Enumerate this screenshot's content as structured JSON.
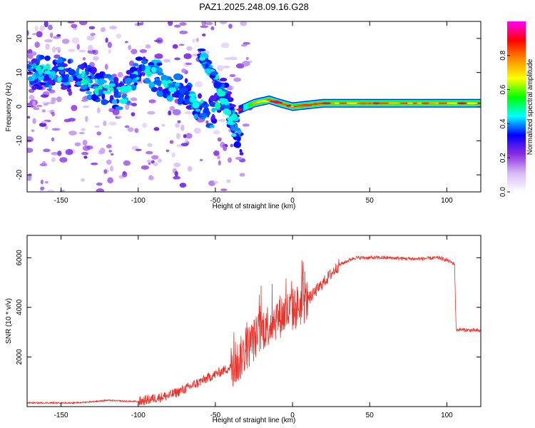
{
  "title": "PAZ1.2025.248.09.16.G28",
  "chart_data": [
    {
      "type": "heatmap",
      "title": "PAZ1.2025.248.09.16.G28",
      "xlabel": "Height of straight line (km)",
      "ylabel": "Frequency (Hz)",
      "xlim": [
        -172,
        122
      ],
      "ylim": [
        -25,
        25
      ],
      "x_ticks": [
        -150,
        -100,
        -50,
        0,
        50,
        100
      ],
      "y_ticks": [
        -20,
        -10,
        0,
        10,
        20
      ],
      "colorbar": {
        "label": "Normalized spectral amplitude",
        "range": [
          0,
          1
        ],
        "ticks": [
          0.0,
          0.2,
          0.4,
          0.6,
          0.8
        ],
        "tick_labels": [
          "0.0",
          "0.2",
          "0.4",
          "0.6",
          "0.8"
        ],
        "colors": [
          "#ffffff",
          "#d6b8f5",
          "#8a2be2",
          "#0000ff",
          "#00ffff",
          "#00ff00",
          "#ffff00",
          "#ff8c00",
          "#ff0000",
          "#ff00ff"
        ]
      },
      "ridge_main": {
        "x": [
          -172,
          -160,
          -140,
          -130,
          -120,
          -110,
          -100,
          -90,
          -80,
          -70,
          -60,
          -52,
          -45,
          -38,
          -33
        ],
        "y": [
          10,
          10,
          9,
          7,
          5,
          3,
          10,
          9,
          7,
          4,
          0,
          -2,
          5,
          -4,
          -10
        ]
      },
      "ridge_secondary": {
        "x": [
          -60,
          -55,
          -50,
          -45,
          -40,
          -36
        ],
        "y": [
          16,
          12,
          8,
          3,
          -4,
          -10
        ]
      },
      "ridge_stable": {
        "x": [
          -35,
          -25,
          -15,
          -8,
          0,
          20,
          60,
          100,
          122
        ],
        "y": [
          -1,
          1,
          2,
          1,
          0,
          1,
          1,
          1,
          1
        ]
      }
    },
    {
      "type": "line",
      "xlabel": "Height of straight line (km)",
      "ylabel": "SNR (10 * v/v)",
      "xlim": [
        -172,
        122
      ],
      "ylim": [
        0,
        6900
      ],
      "x_ticks": [
        -150,
        -100,
        -50,
        0,
        50,
        100
      ],
      "y_ticks": [
        2000,
        4000,
        6000
      ],
      "color": "#e8322a",
      "series": [
        {
          "name": "SNR",
          "x": [
            -172,
            -140,
            -120,
            -100,
            -80,
            -70,
            -60,
            -50,
            -40,
            -35,
            -30,
            -20,
            -10,
            0,
            10,
            20,
            30,
            40,
            60,
            80,
            95,
            100,
            105,
            106,
            110,
            122
          ],
          "y": [
            150,
            150,
            250,
            200,
            450,
            700,
            1000,
            1300,
            1600,
            1800,
            2300,
            3100,
            3600,
            3900,
            4300,
            5000,
            5700,
            6000,
            6000,
            5950,
            6000,
            5900,
            5750,
            3100,
            3100,
            3050
          ]
        }
      ]
    }
  ]
}
